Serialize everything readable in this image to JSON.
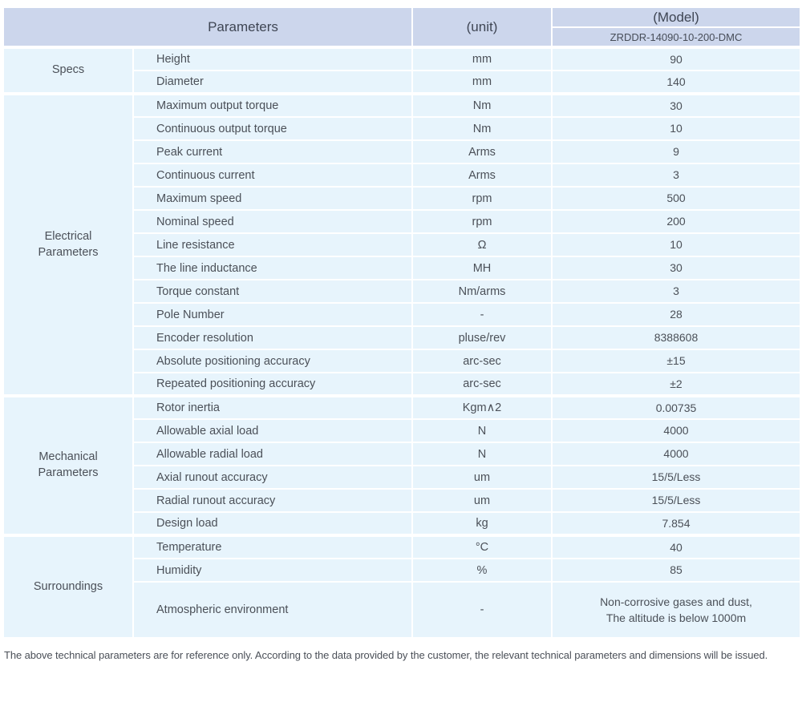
{
  "colors": {
    "header_bg": "#ccd6ec",
    "row_bg": "#e7f4fc",
    "divider": "#ffffff",
    "header_text": "#3f4654",
    "body_text": "#4b5058"
  },
  "table": {
    "header": {
      "parameters_label": "Parameters",
      "unit_label": "(unit)",
      "model_label": "(Model)",
      "model_value": "ZRDDR-14090-10-200-DMC"
    },
    "sections": [
      {
        "category": "Specs",
        "rows": [
          [
            "Height",
            "mm",
            "90"
          ],
          [
            "Diameter",
            "mm",
            "140"
          ]
        ]
      },
      {
        "category": "Electrical Parameters",
        "rows": [
          [
            "Maximum output torque",
            "Nm",
            "30"
          ],
          [
            "Continuous output torque",
            "Nm",
            "10"
          ],
          [
            "Peak current",
            "Arms",
            "9"
          ],
          [
            "Continuous current",
            "Arms",
            "3"
          ],
          [
            "Maximum speed",
            "rpm",
            "500"
          ],
          [
            "Nominal speed",
            "rpm",
            "200"
          ],
          [
            "Line resistance",
            "Ω",
            "10"
          ],
          [
            "The line inductance",
            "MH",
            "30"
          ],
          [
            "Torque constant",
            "Nm/arms",
            "3"
          ],
          [
            "Pole Number",
            "-",
            "28"
          ],
          [
            "Encoder resolution",
            "pluse/rev",
            "8388608"
          ],
          [
            "Absolute positioning accuracy",
            "arc-sec",
            "±15"
          ],
          [
            "Repeated positioning accuracy",
            "arc-sec",
            "±2"
          ]
        ]
      },
      {
        "category": "Mechanical Parameters",
        "rows": [
          [
            "Rotor inertia",
            "Kgm∧2",
            "0.00735"
          ],
          [
            "Allowable axial load",
            "N",
            "4000"
          ],
          [
            "Allowable radial load",
            "N",
            "4000"
          ],
          [
            "Axial runout accuracy",
            "um",
            "15/5/Less"
          ],
          [
            "Radial runout accuracy",
            "um",
            "15/5/Less"
          ],
          [
            "Design load",
            "kg",
            "7.854"
          ]
        ]
      },
      {
        "category": "Surroundings",
        "rows": [
          [
            "Temperature",
            "°C",
            "40"
          ],
          [
            "Humidity",
            "%",
            "85"
          ],
          [
            "Atmospheric environment",
            "-",
            "Non-corrosive gases and dust,\nThe altitude is below 1000m"
          ]
        ]
      }
    ]
  },
  "footer_note": "The above technical parameters are for reference only. According to the data provided by the customer, the relevant technical parameters and dimensions will be issued."
}
